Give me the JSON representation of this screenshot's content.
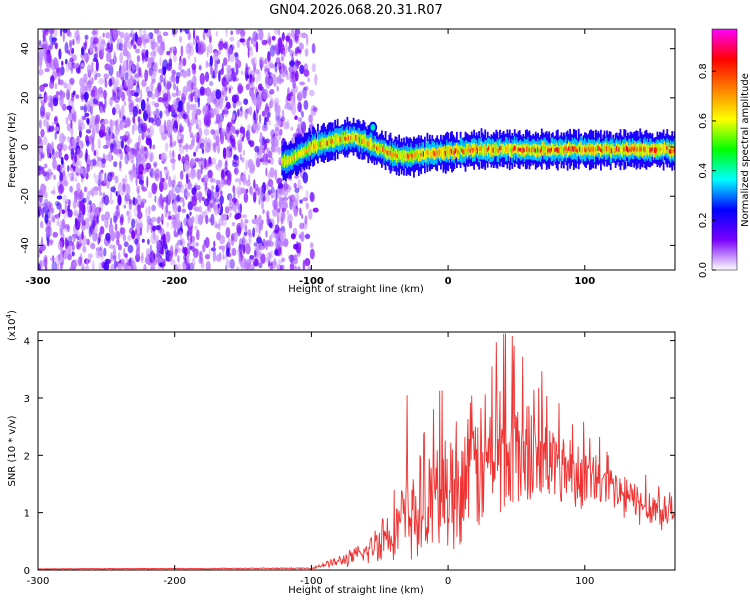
{
  "figure": {
    "title": "GN04.2026.068.20.31.R07"
  },
  "chart_data": [
    {
      "type": "heatmap",
      "name": "spectrogram",
      "xlabel": "Height of straight line (km)",
      "ylabel": "Frequency (Hz)",
      "xlim": [
        -300,
        166
      ],
      "ylim": [
        -50,
        48
      ],
      "xticks": [
        -300,
        -200,
        -100,
        0,
        100
      ],
      "xtick_labels": [
        "-300",
        "-200",
        "-100",
        "0",
        "100"
      ],
      "yticks": [
        -40,
        -20,
        0,
        20,
        40
      ],
      "ytick_labels": [
        "-40",
        "-20",
        "0",
        "20",
        "40"
      ],
      "noise_region_km": [
        -300,
        -110
      ],
      "noise_fade_end_km": -95,
      "signal_trace": {
        "x": [
          -120,
          -110,
          -100,
          -90,
          -80,
          -70,
          -60,
          -50,
          -40,
          -30,
          -20,
          0,
          20,
          40,
          60,
          80,
          100,
          120,
          140,
          160,
          166
        ],
        "freq_hz": [
          -6,
          -3,
          0,
          2,
          3,
          4,
          2,
          -1,
          -3,
          -4,
          -3,
          -2,
          -1,
          -1,
          -1,
          -1,
          -1,
          -1,
          -1,
          -1,
          -2
        ]
      },
      "blob": {
        "x": -55,
        "freq_hz": 8
      },
      "colorbar": {
        "label": "Normalized spectral amplitude",
        "ticks": [
          0.0,
          0.2,
          0.4,
          0.6,
          0.8
        ],
        "tick_labels": [
          "0.0",
          "0.2",
          "0.4",
          "0.6",
          "0.8"
        ],
        "range": [
          0,
          0.97
        ],
        "colors": [
          "#ffffff",
          "#7a00ff",
          "#0000ff",
          "#00ffff",
          "#00ff00",
          "#ffff00",
          "#ff8000",
          "#ff0000",
          "#ff00ff"
        ]
      }
    },
    {
      "type": "line",
      "name": "snr",
      "xlabel": "Height of straight line (km)",
      "ylabel": "SNR (10 * v/v)",
      "scale_label_base": "(x10",
      "scale_label_exp": "4",
      "scale_label_close": ")",
      "xlim": [
        -300,
        166
      ],
      "ylim": [
        0,
        4.15
      ],
      "xticks": [
        -300,
        -200,
        -100,
        0,
        100
      ],
      "xtick_labels": [
        "-300",
        "-200",
        "-100",
        "0",
        "100"
      ],
      "yticks": [
        0,
        1,
        2,
        3,
        4
      ],
      "ytick_labels": [
        "0",
        "1",
        "2",
        "3",
        "4"
      ],
      "color": "#ee3333",
      "envelope": {
        "x": [
          -300,
          -100,
          -90,
          -80,
          -60,
          -50,
          -40,
          -30,
          -20,
          0,
          20,
          40,
          60,
          80,
          100,
          120,
          140,
          166
        ],
        "mean": [
          0.02,
          0.03,
          0.1,
          0.15,
          0.3,
          0.55,
          0.75,
          0.9,
          1.05,
          1.4,
          1.8,
          2.1,
          2.0,
          1.85,
          1.65,
          1.4,
          1.15,
          1.0
        ],
        "amplitude": [
          0.005,
          0.01,
          0.05,
          0.1,
          0.2,
          0.4,
          0.6,
          0.8,
          0.9,
          1.1,
          1.2,
          1.3,
          1.0,
          0.7,
          0.55,
          0.45,
          0.35,
          0.3
        ]
      },
      "peaks": [
        {
          "x": 40.5,
          "y": 4.12
        },
        {
          "x": -30,
          "y": 3.05
        },
        {
          "x": 48,
          "y": 3.6
        },
        {
          "x": 32,
          "y": 3.55
        }
      ]
    }
  ]
}
